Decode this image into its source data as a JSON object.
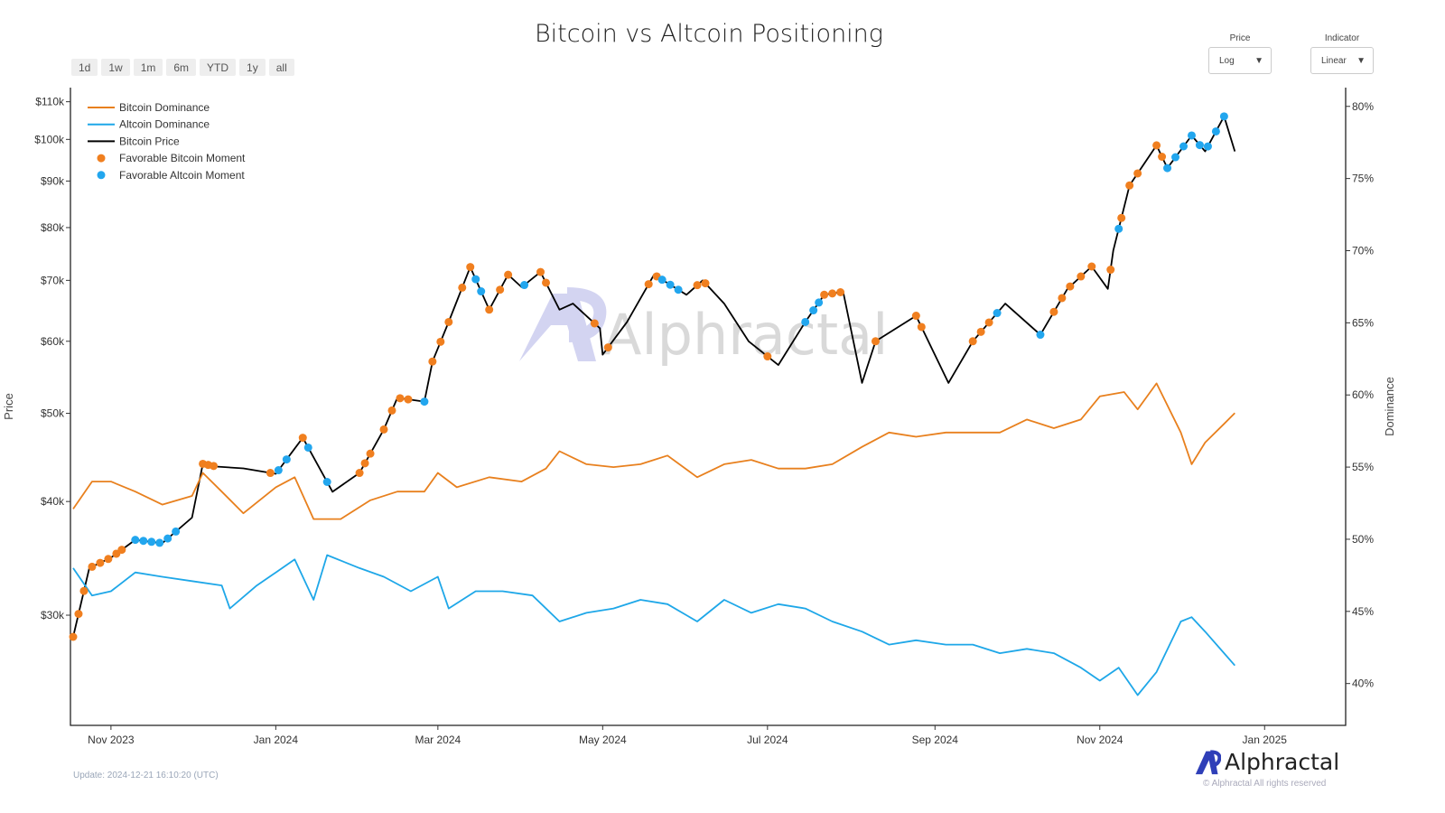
{
  "range_buttons": [
    "1d",
    "1w",
    "1m",
    "6m",
    "YTD",
    "1y",
    "all"
  ],
  "controls": {
    "price": {
      "label": "Price",
      "value": "Log"
    },
    "indicator": {
      "label": "Indicator",
      "value": "Linear"
    }
  },
  "footer": {
    "update": "Update: 2024-12-21 16:10:20 (UTC)",
    "brand": "Alphractal",
    "rights": "© Alphractal All rights reserved"
  },
  "watermark": "Alphractal",
  "colors": {
    "btc_dominance": "#e8801e",
    "alt_dominance": "#1ea7e8",
    "btc_price": "#000000",
    "btc_moment": "#f07f1f",
    "alt_moment": "#22a6ee"
  },
  "chart_data": {
    "type": "line",
    "title": "Bitcoin vs Altcoin Positioning",
    "ylabel": "Price",
    "y2label": "Dominance",
    "yscale": "log",
    "y2scale": "linear",
    "ylim": [
      22700,
      114000
    ],
    "y2lim": [
      37.1,
      81.3
    ],
    "xlim": [
      "2023-10-17",
      "2025-01-31"
    ],
    "x_ticks": [
      {
        "d": "2023-11-01",
        "label": "Nov 2023"
      },
      {
        "d": "2024-01-01",
        "label": "Jan 2024"
      },
      {
        "d": "2024-03-01",
        "label": "Mar 2024"
      },
      {
        "d": "2024-05-01",
        "label": "May 2024"
      },
      {
        "d": "2024-07-01",
        "label": "Jul 2024"
      },
      {
        "d": "2024-09-01",
        "label": "Sep 2024"
      },
      {
        "d": "2024-11-01",
        "label": "Nov 2024"
      },
      {
        "d": "2025-01-01",
        "label": "Jan 2025"
      }
    ],
    "y_ticks": [
      {
        "v": 30000,
        "label": "$30k"
      },
      {
        "v": 40000,
        "label": "$40k"
      },
      {
        "v": 50000,
        "label": "$50k"
      },
      {
        "v": 60000,
        "label": "$60k"
      },
      {
        "v": 70000,
        "label": "$70k"
      },
      {
        "v": 80000,
        "label": "$80k"
      },
      {
        "v": 90000,
        "label": "$90k"
      },
      {
        "v": 100000,
        "label": "$100k"
      },
      {
        "v": 110000,
        "label": "$110k"
      }
    ],
    "y2_ticks": [
      {
        "v": 40,
        "label": "40%"
      },
      {
        "v": 45,
        "label": "45%"
      },
      {
        "v": 50,
        "label": "50%"
      },
      {
        "v": 55,
        "label": "55%"
      },
      {
        "v": 60,
        "label": "60%"
      },
      {
        "v": 65,
        "label": "65%"
      },
      {
        "v": 70,
        "label": "70%"
      },
      {
        "v": 75,
        "label": "75%"
      },
      {
        "v": 80,
        "label": "80%"
      }
    ],
    "legend": {
      "placement": "top-left",
      "entries": [
        "Bitcoin Dominance",
        "Altcoin Dominance",
        "Bitcoin Price",
        "Favorable Bitcoin Moment",
        "Favorable Altcoin Moment"
      ]
    },
    "series": [
      {
        "name": "Bitcoin Price",
        "axis": "y",
        "points": [
          [
            "2023-10-18",
            28400
          ],
          [
            "2023-10-24",
            33800
          ],
          [
            "2023-11-01",
            34700
          ],
          [
            "2023-11-10",
            36300
          ],
          [
            "2023-11-20",
            36000
          ],
          [
            "2023-12-01",
            38400
          ],
          [
            "2023-12-05",
            44000
          ],
          [
            "2023-12-10",
            43700
          ],
          [
            "2023-12-20",
            43500
          ],
          [
            "2024-01-01",
            42900
          ],
          [
            "2024-01-11",
            47000
          ],
          [
            "2024-01-22",
            41000
          ],
          [
            "2024-02-01",
            43000
          ],
          [
            "2024-02-10",
            48000
          ],
          [
            "2024-02-15",
            52000
          ],
          [
            "2024-02-25",
            51500
          ],
          [
            "2024-02-28",
            57000
          ],
          [
            "2024-03-05",
            63000
          ],
          [
            "2024-03-13",
            72400
          ],
          [
            "2024-03-20",
            65000
          ],
          [
            "2024-03-27",
            71000
          ],
          [
            "2024-04-01",
            68800
          ],
          [
            "2024-04-08",
            71500
          ],
          [
            "2024-04-15",
            65000
          ],
          [
            "2024-04-20",
            66000
          ],
          [
            "2024-04-30",
            62000
          ],
          [
            "2024-05-01",
            58000
          ],
          [
            "2024-05-10",
            63000
          ],
          [
            "2024-05-20",
            71000
          ],
          [
            "2024-06-01",
            67500
          ],
          [
            "2024-06-07",
            70000
          ],
          [
            "2024-06-15",
            66000
          ],
          [
            "2024-06-24",
            60000
          ],
          [
            "2024-07-05",
            56500
          ],
          [
            "2024-07-15",
            63000
          ],
          [
            "2024-07-22",
            67500
          ],
          [
            "2024-07-29",
            68000
          ],
          [
            "2024-08-05",
            54000
          ],
          [
            "2024-08-10",
            60000
          ],
          [
            "2024-08-25",
            64000
          ],
          [
            "2024-09-06",
            54000
          ],
          [
            "2024-09-15",
            60000
          ],
          [
            "2024-09-27",
            66000
          ],
          [
            "2024-10-10",
            61000
          ],
          [
            "2024-10-20",
            68500
          ],
          [
            "2024-10-29",
            72500
          ],
          [
            "2024-11-04",
            68500
          ],
          [
            "2024-11-06",
            75500
          ],
          [
            "2024-11-12",
            89000
          ],
          [
            "2024-11-22",
            98500
          ],
          [
            "2024-11-26",
            93000
          ],
          [
            "2024-12-05",
            101000
          ],
          [
            "2024-12-10",
            97000
          ],
          [
            "2024-12-17",
            106000
          ],
          [
            "2024-12-21",
            97000
          ]
        ]
      },
      {
        "name": "Bitcoin Dominance",
        "axis": "y2",
        "points": [
          [
            "2023-10-18",
            52.1
          ],
          [
            "2023-10-25",
            54
          ],
          [
            "2023-11-01",
            54
          ],
          [
            "2023-11-10",
            53.3
          ],
          [
            "2023-11-20",
            52.4
          ],
          [
            "2023-12-01",
            53
          ],
          [
            "2023-12-05",
            54.6
          ],
          [
            "2023-12-12",
            53.3
          ],
          [
            "2023-12-20",
            51.8
          ],
          [
            "2024-01-01",
            53.6
          ],
          [
            "2024-01-08",
            54.3
          ],
          [
            "2024-01-15",
            51.4
          ],
          [
            "2024-01-25",
            51.4
          ],
          [
            "2024-02-05",
            52.7
          ],
          [
            "2024-02-15",
            53.3
          ],
          [
            "2024-02-25",
            53.3
          ],
          [
            "2024-03-01",
            54.6
          ],
          [
            "2024-03-08",
            53.6
          ],
          [
            "2024-03-20",
            54.3
          ],
          [
            "2024-04-01",
            54
          ],
          [
            "2024-04-10",
            54.9
          ],
          [
            "2024-04-15",
            56.1
          ],
          [
            "2024-04-25",
            55.2
          ],
          [
            "2024-05-05",
            55
          ],
          [
            "2024-05-15",
            55.2
          ],
          [
            "2024-05-25",
            55.8
          ],
          [
            "2024-06-05",
            54.3
          ],
          [
            "2024-06-15",
            55.2
          ],
          [
            "2024-06-25",
            55.5
          ],
          [
            "2024-07-05",
            54.9
          ],
          [
            "2024-07-15",
            54.9
          ],
          [
            "2024-07-25",
            55.2
          ],
          [
            "2024-08-05",
            56.4
          ],
          [
            "2024-08-15",
            57.4
          ],
          [
            "2024-08-25",
            57.1
          ],
          [
            "2024-09-05",
            57.4
          ],
          [
            "2024-09-15",
            57.4
          ],
          [
            "2024-09-25",
            57.4
          ],
          [
            "2024-10-05",
            58.3
          ],
          [
            "2024-10-15",
            57.7
          ],
          [
            "2024-10-25",
            58.3
          ],
          [
            "2024-11-01",
            59.9
          ],
          [
            "2024-11-10",
            60.2
          ],
          [
            "2024-11-15",
            59
          ],
          [
            "2024-11-22",
            60.8
          ],
          [
            "2024-12-01",
            57.4
          ],
          [
            "2024-12-05",
            55.2
          ],
          [
            "2024-12-10",
            56.7
          ],
          [
            "2024-12-17",
            58
          ],
          [
            "2024-12-21",
            58.75
          ]
        ]
      },
      {
        "name": "Altcoin Dominance",
        "axis": "y2",
        "points": [
          [
            "2023-10-18",
            48
          ],
          [
            "2023-10-25",
            46.1
          ],
          [
            "2023-11-01",
            46.4
          ],
          [
            "2023-11-10",
            47.7
          ],
          [
            "2023-11-20",
            47.4
          ],
          [
            "2023-12-01",
            47.1
          ],
          [
            "2023-12-12",
            46.8
          ],
          [
            "2023-12-15",
            45.2
          ],
          [
            "2023-12-25",
            46.8
          ],
          [
            "2024-01-01",
            47.7
          ],
          [
            "2024-01-08",
            48.6
          ],
          [
            "2024-01-15",
            45.8
          ],
          [
            "2024-01-20",
            48.9
          ],
          [
            "2024-02-01",
            48
          ],
          [
            "2024-02-10",
            47.4
          ],
          [
            "2024-02-20",
            46.4
          ],
          [
            "2024-03-01",
            47.4
          ],
          [
            "2024-03-05",
            45.2
          ],
          [
            "2024-03-15",
            46.4
          ],
          [
            "2024-03-25",
            46.4
          ],
          [
            "2024-04-05",
            46.1
          ],
          [
            "2024-04-15",
            44.3
          ],
          [
            "2024-04-25",
            44.9
          ],
          [
            "2024-05-05",
            45.2
          ],
          [
            "2024-05-15",
            45.8
          ],
          [
            "2024-05-25",
            45.5
          ],
          [
            "2024-06-05",
            44.3
          ],
          [
            "2024-06-15",
            45.8
          ],
          [
            "2024-06-25",
            44.9
          ],
          [
            "2024-07-05",
            45.5
          ],
          [
            "2024-07-15",
            45.2
          ],
          [
            "2024-07-25",
            44.3
          ],
          [
            "2024-08-05",
            43.6
          ],
          [
            "2024-08-15",
            42.7
          ],
          [
            "2024-08-25",
            43
          ],
          [
            "2024-09-05",
            42.7
          ],
          [
            "2024-09-15",
            42.7
          ],
          [
            "2024-09-25",
            42.1
          ],
          [
            "2024-10-05",
            42.4
          ],
          [
            "2024-10-15",
            42.1
          ],
          [
            "2024-10-25",
            41.1
          ],
          [
            "2024-11-01",
            40.2
          ],
          [
            "2024-11-08",
            41.1
          ],
          [
            "2024-11-15",
            39.2
          ],
          [
            "2024-11-22",
            40.8
          ],
          [
            "2024-12-01",
            44.3
          ],
          [
            "2024-12-05",
            44.6
          ],
          [
            "2024-12-10",
            43.6
          ],
          [
            "2024-12-17",
            42.1
          ],
          [
            "2024-12-21",
            41.25
          ]
        ]
      }
    ],
    "btc_moments": [
      "2023-10-18",
      "2023-10-20",
      "2023-10-22",
      "2023-10-25",
      "2023-10-28",
      "2023-10-31",
      "2023-11-03",
      "2023-11-05",
      "2023-12-05",
      "2023-12-07",
      "2023-12-09",
      "2023-12-30",
      "2024-01-11",
      "2024-02-01",
      "2024-02-03",
      "2024-02-05",
      "2024-02-10",
      "2024-02-13",
      "2024-02-16",
      "2024-02-19",
      "2024-02-28",
      "2024-03-02",
      "2024-03-05",
      "2024-03-10",
      "2024-03-13",
      "2024-03-20",
      "2024-03-24",
      "2024-03-27",
      "2024-04-08",
      "2024-04-10",
      "2024-04-28",
      "2024-05-03",
      "2024-05-18",
      "2024-05-21",
      "2024-06-05",
      "2024-06-08",
      "2024-07-01",
      "2024-07-22",
      "2024-07-25",
      "2024-07-28",
      "2024-08-10",
      "2024-08-25",
      "2024-08-27",
      "2024-09-15",
      "2024-09-18",
      "2024-09-21",
      "2024-10-15",
      "2024-10-18",
      "2024-10-21",
      "2024-10-25",
      "2024-10-29",
      "2024-11-05",
      "2024-11-09",
      "2024-11-12",
      "2024-11-15",
      "2024-11-22",
      "2024-11-24"
    ],
    "alt_moments": [
      "2023-11-10",
      "2023-11-13",
      "2023-11-16",
      "2023-11-19",
      "2023-11-22",
      "2023-11-25",
      "2024-01-02",
      "2024-01-05",
      "2024-01-13",
      "2024-01-20",
      "2024-02-25",
      "2024-03-15",
      "2024-03-17",
      "2024-04-02",
      "2024-05-23",
      "2024-05-26",
      "2024-05-29",
      "2024-07-15",
      "2024-07-18",
      "2024-07-20",
      "2024-09-24",
      "2024-10-10",
      "2024-11-08",
      "2024-11-26",
      "2024-11-29",
      "2024-12-02",
      "2024-12-05",
      "2024-12-08",
      "2024-12-11",
      "2024-12-14",
      "2024-12-17"
    ]
  }
}
